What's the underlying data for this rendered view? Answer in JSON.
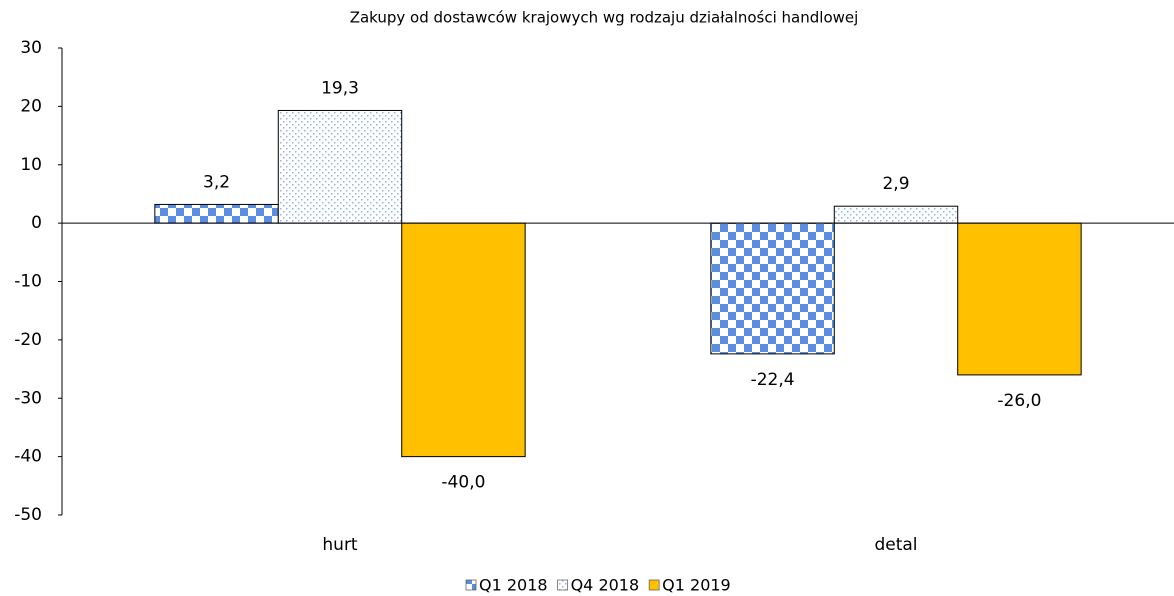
{
  "chart_data": {
    "type": "bar",
    "title": "Zakupy od dostawców krajowych wg rodzaju działalności handlowej",
    "categories": [
      "hurt",
      "detal"
    ],
    "series": [
      {
        "name": "Q1 2018",
        "color": "#5b8ee0",
        "pattern": "checkerboard",
        "values": [
          3.2,
          -22.4
        ],
        "value_labels": [
          "3,2",
          "-22,4"
        ]
      },
      {
        "name": "Q4 2018",
        "color": "#8fb3e6",
        "pattern": "dots",
        "values": [
          19.3,
          2.9
        ],
        "value_labels": [
          "19,3",
          "2,9"
        ]
      },
      {
        "name": "Q1 2019",
        "color": "#ffc000",
        "pattern": "solid",
        "values": [
          -40.0,
          -26.0
        ],
        "value_labels": [
          "-40,0",
          "-26,0"
        ]
      }
    ],
    "ylim": [
      -50,
      30
    ],
    "yticks": [
      -50,
      -40,
      -30,
      -20,
      -10,
      0,
      10,
      20,
      30
    ],
    "legend": "bottom"
  }
}
